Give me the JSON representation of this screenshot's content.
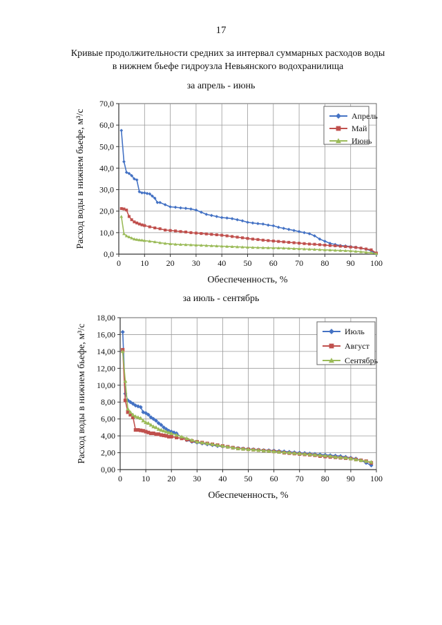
{
  "page_number": "17",
  "title_line1": "Кривые продолжительности средних за интервал суммарных расходов воды",
  "title_line2": "в нижнем бьефе гидроузла Невьянского водохранилища",
  "chart_data": [
    {
      "type": "line",
      "subtitle": "за апрель - июнь",
      "xlabel": "Обеспеченность, %",
      "ylabel": "Расход воды в нижнем бьефе, м³/с",
      "xlim": [
        0,
        100
      ],
      "ylim": [
        0,
        70
      ],
      "xticks": [
        "0",
        "10",
        "20",
        "30",
        "40",
        "50",
        "60",
        "70",
        "80",
        "90",
        "100"
      ],
      "yticks": [
        "0,0",
        "10,0",
        "20,0",
        "30,0",
        "40,0",
        "50,0",
        "60,0",
        "70,0"
      ],
      "grid": true,
      "legend_position": "top-right",
      "series": [
        {
          "name": "Апрель",
          "color": "#4472C4",
          "marker": "diamond",
          "x": [
            1,
            2,
            3,
            4,
            5,
            6,
            7,
            8,
            9,
            10,
            11,
            12,
            13,
            14,
            15,
            16,
            18,
            20,
            22,
            24,
            26,
            28,
            30,
            32,
            34,
            36,
            38,
            40,
            42,
            44,
            46,
            48,
            50,
            52,
            54,
            56,
            58,
            60,
            62,
            64,
            66,
            68,
            70,
            72,
            74,
            76,
            78,
            80,
            82,
            84,
            86,
            88,
            90,
            92,
            94,
            96,
            98,
            100
          ],
          "y": [
            57.5,
            43,
            38,
            37.5,
            36.5,
            35,
            34.5,
            29,
            28.5,
            28.5,
            28.2,
            28,
            27,
            26,
            24,
            24,
            23,
            22,
            21.8,
            21.5,
            21.3,
            21,
            20.5,
            19.5,
            18.5,
            18,
            17.5,
            17,
            16.8,
            16.5,
            16,
            15.5,
            14.8,
            14.5,
            14.2,
            14,
            13.5,
            13.2,
            12.5,
            12,
            11.5,
            11,
            10.5,
            10,
            9.5,
            8.5,
            7,
            6,
            5,
            4.5,
            4,
            3.8,
            3.5,
            3.2,
            2.8,
            2.3,
            1.5,
            0
          ]
        },
        {
          "name": "Май",
          "color": "#C0504D",
          "marker": "square",
          "x": [
            1,
            2,
            3,
            4,
            5,
            6,
            7,
            8,
            9,
            10,
            12,
            14,
            16,
            18,
            20,
            22,
            24,
            26,
            28,
            30,
            32,
            34,
            36,
            38,
            40,
            42,
            44,
            46,
            48,
            50,
            52,
            54,
            56,
            58,
            60,
            62,
            64,
            66,
            68,
            70,
            72,
            74,
            76,
            78,
            80,
            82,
            84,
            86,
            88,
            90,
            92,
            94,
            96,
            98,
            100
          ],
          "y": [
            21.2,
            21,
            20.5,
            17.5,
            16,
            15,
            14.5,
            14,
            13.6,
            13.3,
            12.7,
            12.2,
            11.8,
            11.2,
            11,
            10.8,
            10.5,
            10.3,
            10,
            9.8,
            9.6,
            9.4,
            9.2,
            9,
            8.8,
            8.5,
            8.2,
            7.9,
            7.6,
            7.3,
            7,
            6.8,
            6.5,
            6.3,
            6.1,
            5.9,
            5.7,
            5.5,
            5.3,
            5.1,
            4.9,
            4.7,
            4.6,
            4.4,
            4.2,
            4,
            3.9,
            3.7,
            3.5,
            3.3,
            3.1,
            2.8,
            2.4,
            2,
            0.5
          ]
        },
        {
          "name": "Июнь",
          "color": "#9BBB59",
          "marker": "triangle",
          "x": [
            1,
            2,
            3,
            4,
            5,
            6,
            7,
            8,
            9,
            10,
            12,
            14,
            16,
            18,
            20,
            22,
            24,
            26,
            28,
            30,
            32,
            34,
            36,
            38,
            40,
            42,
            44,
            46,
            48,
            50,
            52,
            54,
            56,
            58,
            60,
            62,
            64,
            66,
            68,
            70,
            72,
            74,
            76,
            78,
            80,
            82,
            84,
            86,
            88,
            90,
            92,
            94,
            96,
            98,
            100
          ],
          "y": [
            17.5,
            9.5,
            8.5,
            8,
            7.5,
            7,
            6.8,
            6.6,
            6.5,
            6.3,
            6,
            5.7,
            5.3,
            5,
            4.8,
            4.6,
            4.5,
            4.4,
            4.3,
            4.2,
            4.1,
            4,
            3.9,
            3.8,
            3.7,
            3.6,
            3.5,
            3.4,
            3.3,
            3.2,
            3.1,
            3.05,
            3,
            2.95,
            2.9,
            2.85,
            2.8,
            2.7,
            2.6,
            2.5,
            2.4,
            2.3,
            2.2,
            2.1,
            2,
            1.9,
            1.8,
            1.7,
            1.6,
            1.5,
            1.3,
            1.1,
            0.9,
            0.6,
            0.2
          ]
        }
      ]
    },
    {
      "type": "line",
      "subtitle": "за июль - сентябрь",
      "xlabel": "Обеспеченность, %",
      "ylabel": "Расход воды в нижнем бьефе, м³/с",
      "xlim": [
        0,
        100
      ],
      "ylim": [
        0,
        18
      ],
      "xticks": [
        "0",
        "10",
        "20",
        "30",
        "40",
        "50",
        "60",
        "70",
        "80",
        "90",
        "100"
      ],
      "yticks": [
        "0,00",
        "2,00",
        "4,00",
        "6,00",
        "8,00",
        "10,00",
        "12,00",
        "14,00",
        "16,00",
        "18,00"
      ],
      "grid": true,
      "legend_position": "top-right",
      "series": [
        {
          "name": "Июль",
          "color": "#4472C4",
          "marker": "diamond",
          "x": [
            1,
            2,
            3,
            4,
            5,
            6,
            7,
            8,
            9,
            10,
            11,
            12,
            13,
            14,
            15,
            16,
            17,
            18,
            19,
            20,
            21,
            22,
            24,
            26,
            28,
            30,
            32,
            34,
            36,
            38,
            40,
            42,
            44,
            46,
            48,
            50,
            52,
            54,
            56,
            58,
            60,
            62,
            64,
            66,
            68,
            70,
            72,
            74,
            76,
            78,
            80,
            82,
            84,
            86,
            88,
            90,
            92,
            94,
            96,
            98
          ],
          "y": [
            16.3,
            9,
            8.2,
            8,
            7.8,
            7.6,
            7.5,
            7.4,
            6.8,
            6.7,
            6.5,
            6.2,
            6,
            5.8,
            5.5,
            5.3,
            5,
            4.8,
            4.6,
            4.5,
            4.4,
            4.3,
            3.8,
            3.5,
            3.3,
            3.2,
            3.1,
            3,
            2.9,
            2.8,
            2.75,
            2.7,
            2.6,
            2.55,
            2.5,
            2.45,
            2.4,
            2.35,
            2.3,
            2.28,
            2.25,
            2.2,
            2.15,
            2.1,
            2.05,
            2,
            1.95,
            1.9,
            1.85,
            1.8,
            1.75,
            1.7,
            1.65,
            1.6,
            1.5,
            1.4,
            1.3,
            1.1,
            0.8,
            0.5
          ]
        },
        {
          "name": "Август",
          "color": "#C0504D",
          "marker": "square",
          "x": [
            1,
            2,
            3,
            4,
            5,
            6,
            7,
            8,
            9,
            10,
            11,
            12,
            13,
            14,
            15,
            16,
            17,
            18,
            19,
            20,
            22,
            24,
            26,
            28,
            30,
            32,
            34,
            36,
            38,
            40,
            42,
            44,
            46,
            48,
            50,
            52,
            54,
            56,
            58,
            60,
            62,
            64,
            66,
            68,
            70,
            72,
            74,
            76,
            78,
            80,
            82,
            84,
            86,
            88,
            90,
            92,
            94,
            96,
            98
          ],
          "y": [
            14.2,
            8.2,
            6.8,
            6.5,
            6.2,
            4.7,
            4.7,
            4.65,
            4.6,
            4.5,
            4.4,
            4.3,
            4.3,
            4.2,
            4.2,
            4.1,
            4.05,
            4,
            3.9,
            3.9,
            3.8,
            3.7,
            3.55,
            3.4,
            3.3,
            3.2,
            3.1,
            3,
            2.9,
            2.8,
            2.7,
            2.6,
            2.5,
            2.45,
            2.4,
            2.35,
            2.3,
            2.25,
            2.2,
            2.15,
            2.1,
            2,
            1.95,
            1.9,
            1.85,
            1.8,
            1.75,
            1.7,
            1.6,
            1.55,
            1.5,
            1.45,
            1.4,
            1.35,
            1.3,
            1.2,
            1.1,
            1,
            0.8
          ]
        },
        {
          "name": "Сентябрь",
          "color": "#9BBB59",
          "marker": "triangle",
          "x": [
            1,
            2,
            3,
            4,
            5,
            6,
            7,
            8,
            9,
            10,
            11,
            12,
            13,
            14,
            15,
            16,
            17,
            18,
            19,
            20,
            22,
            24,
            26,
            28,
            30,
            32,
            34,
            36,
            38,
            40,
            42,
            44,
            46,
            48,
            50,
            52,
            54,
            56,
            58,
            60,
            62,
            64,
            66,
            68,
            70,
            72,
            74,
            76,
            78,
            80,
            82,
            84,
            86,
            88,
            90,
            92,
            94,
            96,
            98
          ],
          "y": [
            14,
            10.5,
            7.2,
            6.8,
            6.5,
            6.3,
            6.2,
            6.1,
            5.8,
            5.6,
            5.5,
            5.3,
            5.1,
            5,
            4.8,
            4.7,
            4.6,
            4.5,
            4.4,
            4.3,
            4.1,
            3.9,
            3.7,
            3.5,
            3.3,
            3.2,
            3.1,
            3,
            2.9,
            2.8,
            2.7,
            2.6,
            2.5,
            2.45,
            2.4,
            2.35,
            2.3,
            2.25,
            2.2,
            2.15,
            2.1,
            2.05,
            2,
            1.95,
            1.9,
            1.85,
            1.8,
            1.75,
            1.7,
            1.65,
            1.6,
            1.5,
            1.45,
            1.4,
            1.3,
            1.2,
            1.1,
            1,
            0.9
          ]
        }
      ]
    }
  ]
}
